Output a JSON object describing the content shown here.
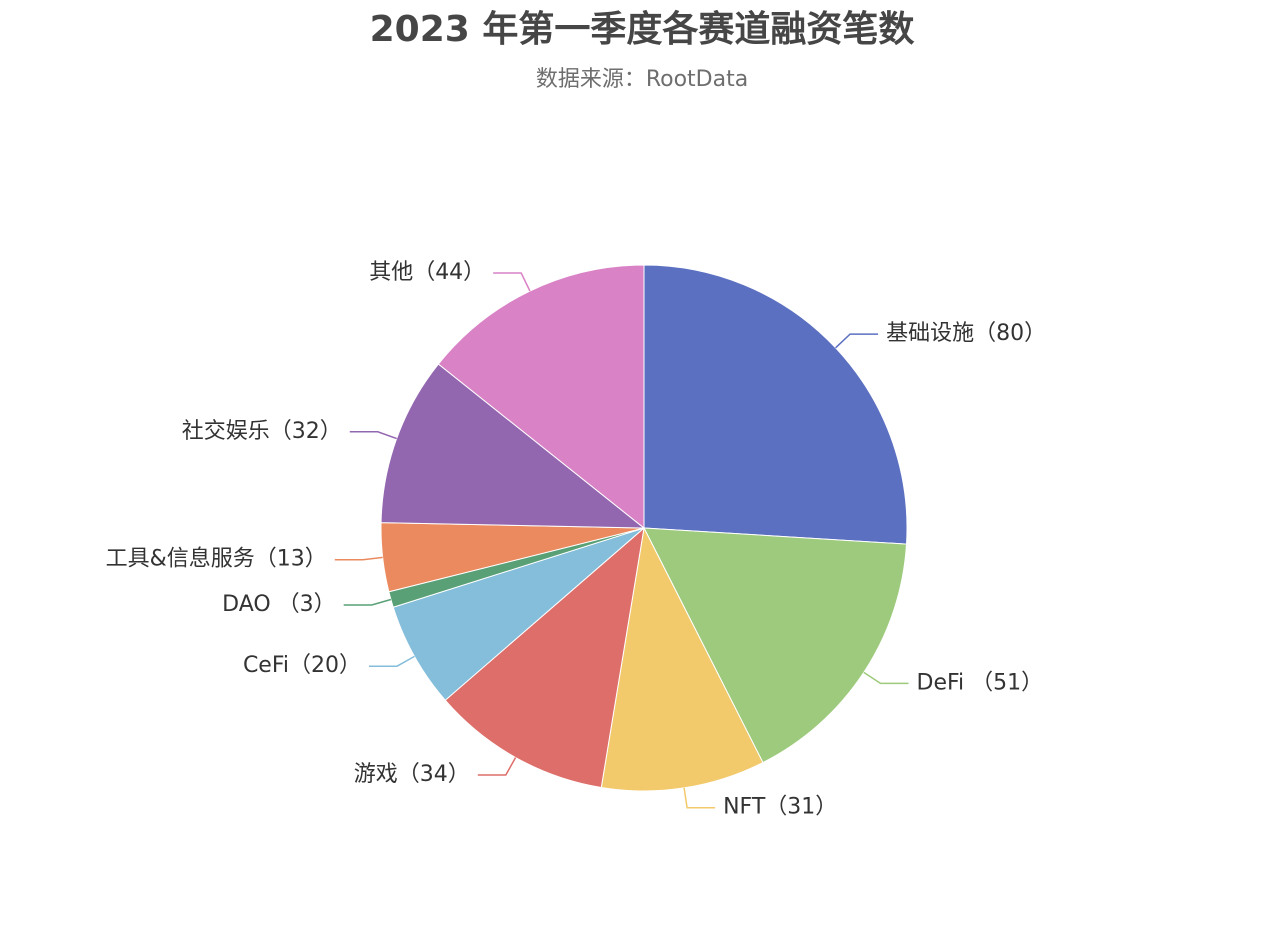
{
  "chart_data": {
    "type": "pie",
    "title": "2023 年第一季度各赛道融资笔数",
    "subtitle": "数据来源：RootData",
    "legend": "none",
    "slices": [
      {
        "name": "基础设施",
        "value": 80,
        "label": "基础设施（80）",
        "color": "#5b70c0"
      },
      {
        "name": "DeFi",
        "value": 51,
        "label": "DeFi （51）",
        "color": "#9dca7c"
      },
      {
        "name": "NFT",
        "value": 31,
        "label": "NFT（31）",
        "color": "#f2ca6b"
      },
      {
        "name": "游戏",
        "value": 34,
        "label": "游戏（34）",
        "color": "#de6e6a"
      },
      {
        "name": "CeFi",
        "value": 20,
        "label": "CeFi（20）",
        "color": "#85bedb"
      },
      {
        "name": "DAO",
        "value": 3,
        "label": "DAO （3）",
        "color": "#59a076"
      },
      {
        "name": "工具&信息服务",
        "value": 13,
        "label": "工具&信息服务（13）",
        "color": "#eb8a5e"
      },
      {
        "name": "社交娱乐",
        "value": 32,
        "label": "社交娱乐（32）",
        "color": "#9366b0"
      },
      {
        "name": "其他",
        "value": 44,
        "label": "其他（44）",
        "color": "#d982c6"
      }
    ]
  }
}
